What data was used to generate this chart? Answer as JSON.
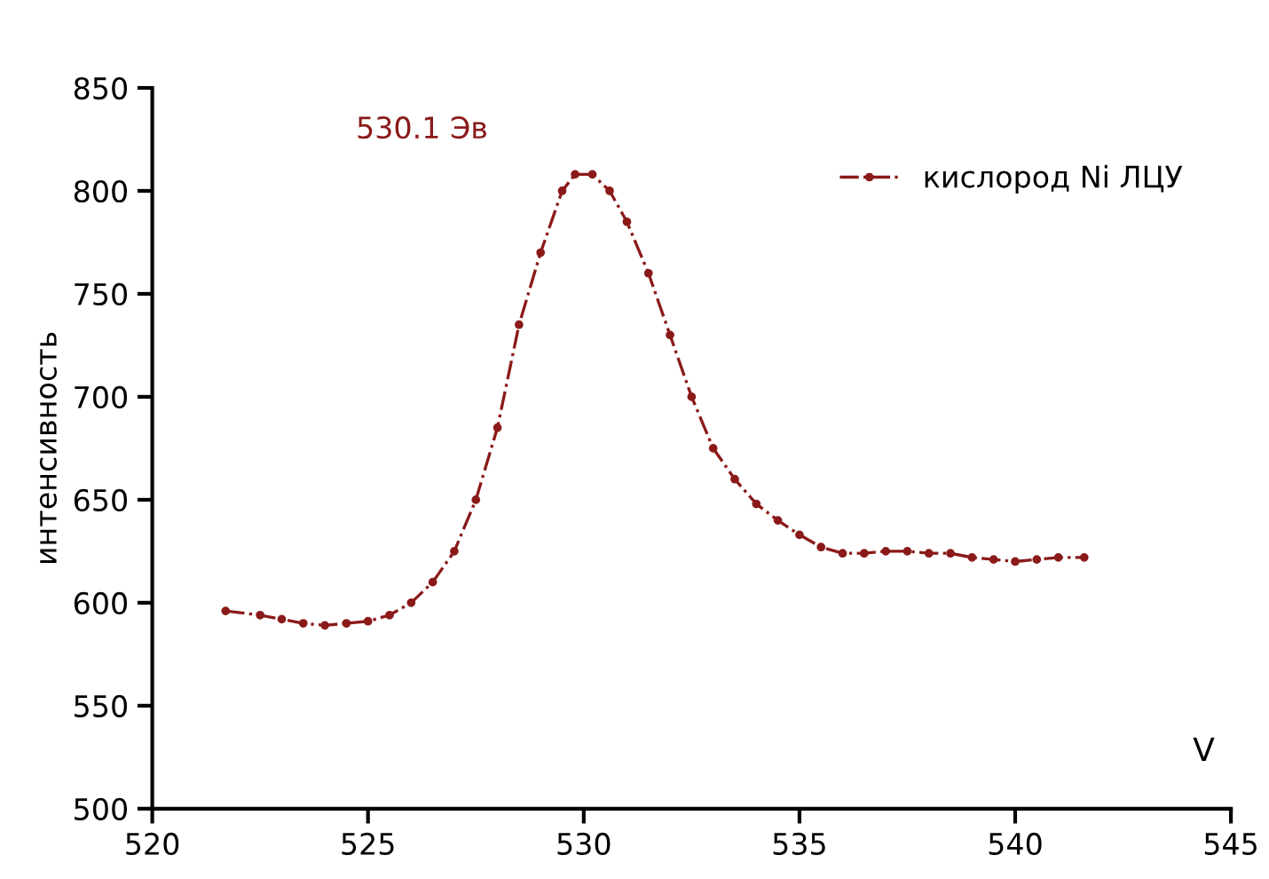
{
  "chart_data": {
    "type": "line",
    "xlabel": "V",
    "ylabel": "интенсивность",
    "annotations": [
      "530.1 Эв"
    ],
    "x": [
      521.7,
      522.5,
      523,
      523.5,
      524,
      524.5,
      525,
      525.5,
      526,
      526.5,
      527,
      527.5,
      528,
      528.5,
      529,
      529.5,
      529.8,
      530.2,
      530.6,
      531,
      531.5,
      532,
      532.5,
      533,
      533.5,
      534,
      534.5,
      535,
      535.5,
      536,
      536.5,
      537,
      537.5,
      538,
      538.5,
      539,
      539.5,
      540,
      540.5,
      541,
      541.6
    ],
    "series": [
      {
        "name": "кислород Ni ЛЦУ",
        "color": "#8b1a1a",
        "values": [
          596,
          594,
          592,
          590,
          589,
          590,
          591,
          594,
          600,
          610,
          625,
          650,
          685,
          735,
          770,
          800,
          808,
          808,
          800,
          785,
          760,
          730,
          700,
          675,
          660,
          648,
          640,
          633,
          627,
          624,
          624,
          625,
          625,
          624,
          624,
          622,
          621,
          620,
          621,
          622,
          622
        ]
      }
    ],
    "xlim": [
      520,
      545
    ],
    "xticks": [
      520,
      525,
      530,
      535,
      540,
      545
    ],
    "ylim": [
      500,
      850
    ],
    "yticks": [
      500,
      550,
      600,
      650,
      700,
      750,
      800,
      850
    ],
    "grid": false,
    "legend": "top right",
    "marker": "circle",
    "line_style": "dashed"
  }
}
